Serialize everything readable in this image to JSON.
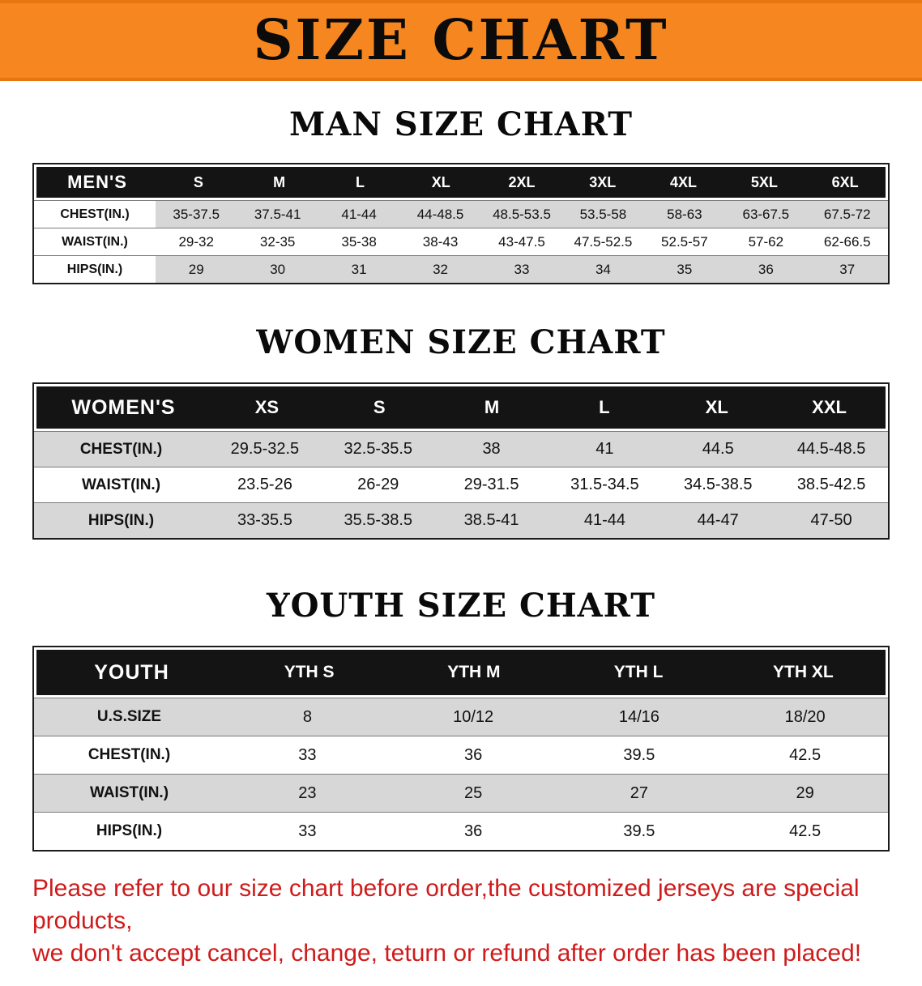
{
  "colors": {
    "banner_bg": "#f6861f",
    "header_bg": "#141414",
    "row_shade": "#d7d7d7",
    "disclaimer_red": "#cf1b1b"
  },
  "banner": {
    "title": "SIZE CHART"
  },
  "sections": [
    {
      "key": "men",
      "heading": "MAN SIZE CHART",
      "table": {
        "header": [
          "MEN'S",
          "S",
          "M",
          "L",
          "XL",
          "2XL",
          "3XL",
          "4XL",
          "5XL",
          "6XL"
        ],
        "rows": [
          [
            "CHEST(IN.)",
            "35-37.5",
            "37.5-41",
            "41-44",
            "44-48.5",
            "48.5-53.5",
            "53.5-58",
            "58-63",
            "63-67.5",
            "67.5-72"
          ],
          [
            "WAIST(IN.)",
            "29-32",
            "32-35",
            "35-38",
            "38-43",
            "43-47.5",
            "47.5-52.5",
            "52.5-57",
            "57-62",
            "62-66.5"
          ],
          [
            "HIPS(IN.)",
            "29",
            "30",
            "31",
            "32",
            "33",
            "34",
            "35",
            "36",
            "37"
          ]
        ]
      }
    },
    {
      "key": "women",
      "heading": "WOMEN SIZE CHART",
      "table": {
        "header": [
          "WOMEN'S",
          "XS",
          "S",
          "M",
          "L",
          "XL",
          "XXL"
        ],
        "rows": [
          [
            "CHEST(IN.)",
            "29.5-32.5",
            "32.5-35.5",
            "38",
            "41",
            "44.5",
            "44.5-48.5"
          ],
          [
            "WAIST(IN.)",
            "23.5-26",
            "26-29",
            "29-31.5",
            "31.5-34.5",
            "34.5-38.5",
            "38.5-42.5"
          ],
          [
            "HIPS(IN.)",
            "33-35.5",
            "35.5-38.5",
            "38.5-41",
            "41-44",
            "44-47",
            "47-50"
          ]
        ]
      }
    },
    {
      "key": "youth",
      "heading": "YOUTH SIZE CHART",
      "table": {
        "header": [
          "YOUTH",
          "YTH S",
          "YTH M",
          "YTH L",
          "YTH XL"
        ],
        "rows": [
          [
            "U.S.SIZE",
            "8",
            "10/12",
            "14/16",
            "18/20"
          ],
          [
            "CHEST(IN.)",
            "33",
            "36",
            "39.5",
            "42.5"
          ],
          [
            "WAIST(IN.)",
            "23",
            "25",
            "27",
            "29"
          ],
          [
            "HIPS(IN.)",
            "33",
            "36",
            "39.5",
            "42.5"
          ]
        ]
      }
    }
  ],
  "disclaimer": {
    "line1": "Please refer to our size chart before order,the customized jerseys are special products,",
    "line2": "we don't accept cancel, change, teturn or refund after order has been placed!"
  }
}
